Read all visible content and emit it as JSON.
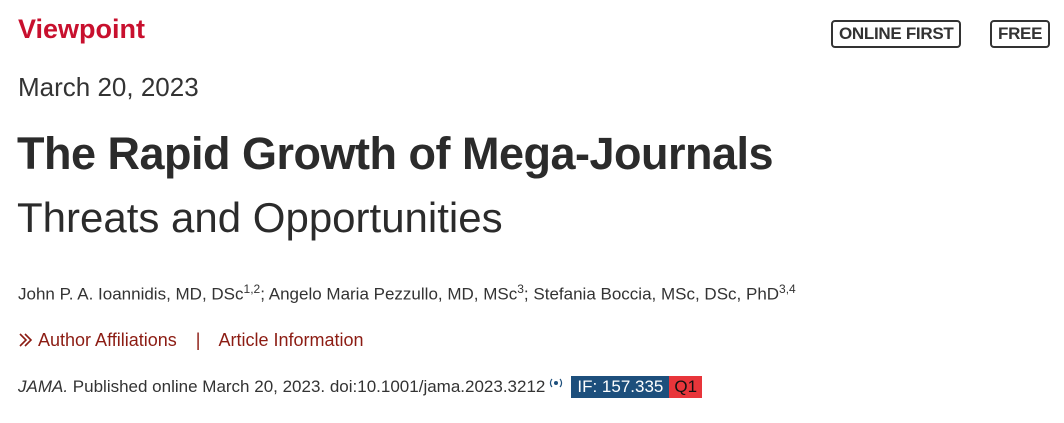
{
  "header": {
    "section": "Viewpoint",
    "badges": [
      "ONLINE FIRST",
      "FREE"
    ],
    "date": "March 20, 2023"
  },
  "article": {
    "title": "The Rapid Growth of Mega-Journals",
    "subtitle": "Threats and Opportunities",
    "authors": [
      {
        "name": "John P. A. Ioannidis, MD, DSc",
        "affiliations": "1,2",
        "separator": ";"
      },
      {
        "name": "Angelo Maria Pezzullo, MD, MSc",
        "affiliations": "3",
        "separator": ";"
      },
      {
        "name": "Stefania Boccia, MSc, DSc, PhD",
        "affiliations": "3,4"
      }
    ],
    "links": {
      "affiliations": "Author Affiliations",
      "divider": "|",
      "information": "Article Information"
    },
    "citation": {
      "journal": "JAMA.",
      "text": "Published online March 20, 2023. doi:10.1001/jama.2023.3212",
      "impact_factor": "IF: 157.335",
      "quartile": "Q1"
    }
  }
}
